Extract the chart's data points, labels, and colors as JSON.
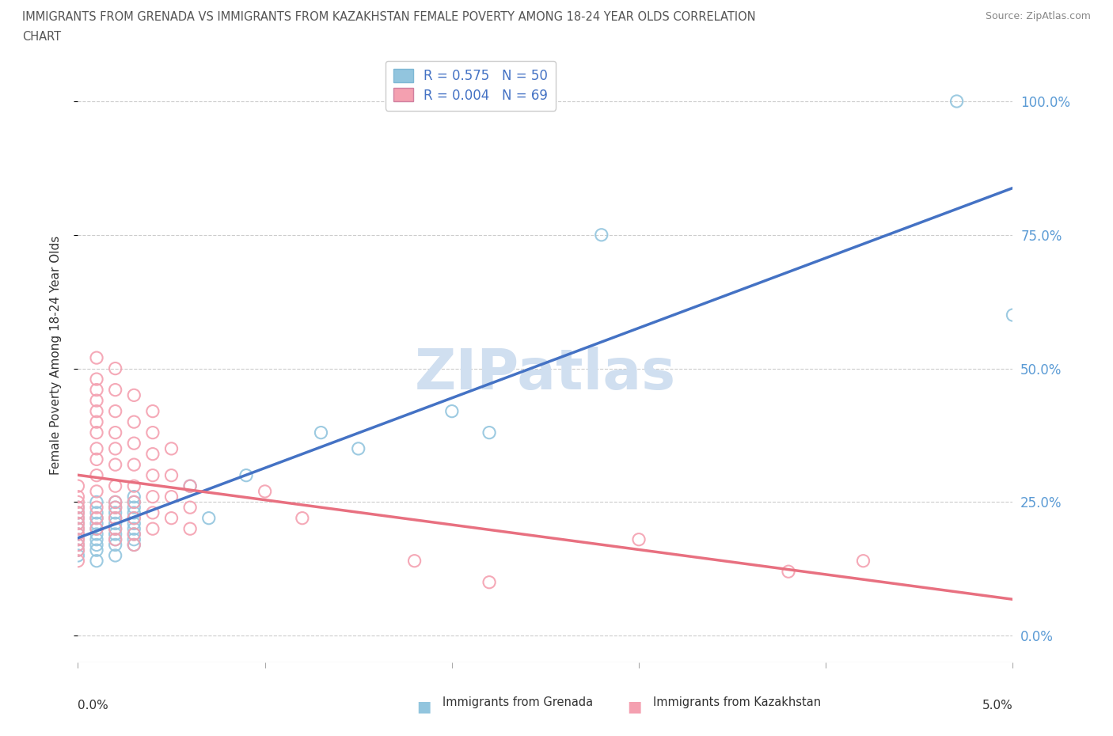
{
  "title_line1": "IMMIGRANTS FROM GRENADA VS IMMIGRANTS FROM KAZAKHSTAN FEMALE POVERTY AMONG 18-24 YEAR OLDS CORRELATION",
  "title_line2": "CHART",
  "source": "Source: ZipAtlas.com",
  "ylabel": "Female Poverty Among 18-24 Year Olds",
  "ytick_labels": [
    "0.0%",
    "25.0%",
    "50.0%",
    "75.0%",
    "100.0%"
  ],
  "ytick_vals": [
    0.0,
    0.25,
    0.5,
    0.75,
    1.0
  ],
  "xlim": [
    0.0,
    0.05
  ],
  "ylim": [
    -0.05,
    1.1
  ],
  "grenada_R": 0.575,
  "grenada_N": 50,
  "kazakhstan_R": 0.004,
  "kazakhstan_N": 69,
  "grenada_color": "#92C5DE",
  "kazakhstan_color": "#F4A0B0",
  "trend_grenada_color": "#4472C4",
  "trend_kazakhstan_color": "#E87080",
  "watermark": "ZIPatlas",
  "grenada_scatter": [
    [
      0.0,
      0.2
    ],
    [
      0.0,
      0.18
    ],
    [
      0.0,
      0.22
    ],
    [
      0.0,
      0.19
    ],
    [
      0.0,
      0.17
    ],
    [
      0.0,
      0.24
    ],
    [
      0.0,
      0.21
    ],
    [
      0.0,
      0.16
    ],
    [
      0.0,
      0.23
    ],
    [
      0.0,
      0.15
    ],
    [
      0.001,
      0.2
    ],
    [
      0.001,
      0.18
    ],
    [
      0.001,
      0.22
    ],
    [
      0.001,
      0.25
    ],
    [
      0.001,
      0.17
    ],
    [
      0.001,
      0.14
    ],
    [
      0.001,
      0.21
    ],
    [
      0.001,
      0.19
    ],
    [
      0.001,
      0.23
    ],
    [
      0.001,
      0.16
    ],
    [
      0.002,
      0.22
    ],
    [
      0.002,
      0.19
    ],
    [
      0.002,
      0.25
    ],
    [
      0.002,
      0.17
    ],
    [
      0.002,
      0.21
    ],
    [
      0.002,
      0.24
    ],
    [
      0.002,
      0.18
    ],
    [
      0.002,
      0.2
    ],
    [
      0.002,
      0.15
    ],
    [
      0.002,
      0.23
    ],
    [
      0.003,
      0.23
    ],
    [
      0.003,
      0.2
    ],
    [
      0.003,
      0.26
    ],
    [
      0.003,
      0.18
    ],
    [
      0.003,
      0.22
    ],
    [
      0.003,
      0.25
    ],
    [
      0.003,
      0.19
    ],
    [
      0.003,
      0.21
    ],
    [
      0.003,
      0.24
    ],
    [
      0.003,
      0.17
    ],
    [
      0.006,
      0.28
    ],
    [
      0.007,
      0.22
    ],
    [
      0.009,
      0.3
    ],
    [
      0.013,
      0.38
    ],
    [
      0.015,
      0.35
    ],
    [
      0.02,
      0.42
    ],
    [
      0.022,
      0.38
    ],
    [
      0.028,
      0.75
    ],
    [
      0.047,
      1.0
    ],
    [
      0.05,
      0.6
    ]
  ],
  "kazakhstan_scatter": [
    [
      0.0,
      0.22
    ],
    [
      0.0,
      0.2
    ],
    [
      0.0,
      0.18
    ],
    [
      0.0,
      0.24
    ],
    [
      0.0,
      0.16
    ],
    [
      0.0,
      0.21
    ],
    [
      0.0,
      0.25
    ],
    [
      0.0,
      0.19
    ],
    [
      0.0,
      0.23
    ],
    [
      0.0,
      0.17
    ],
    [
      0.0,
      0.26
    ],
    [
      0.0,
      0.14
    ],
    [
      0.0,
      0.28
    ],
    [
      0.001,
      0.48
    ],
    [
      0.001,
      0.44
    ],
    [
      0.001,
      0.52
    ],
    [
      0.001,
      0.46
    ],
    [
      0.001,
      0.42
    ],
    [
      0.001,
      0.38
    ],
    [
      0.001,
      0.35
    ],
    [
      0.001,
      0.4
    ],
    [
      0.001,
      0.3
    ],
    [
      0.001,
      0.33
    ],
    [
      0.001,
      0.27
    ],
    [
      0.001,
      0.24
    ],
    [
      0.001,
      0.22
    ],
    [
      0.001,
      0.2
    ],
    [
      0.002,
      0.5
    ],
    [
      0.002,
      0.46
    ],
    [
      0.002,
      0.42
    ],
    [
      0.002,
      0.38
    ],
    [
      0.002,
      0.35
    ],
    [
      0.002,
      0.32
    ],
    [
      0.002,
      0.28
    ],
    [
      0.002,
      0.25
    ],
    [
      0.002,
      0.22
    ],
    [
      0.002,
      0.2
    ],
    [
      0.002,
      0.18
    ],
    [
      0.002,
      0.24
    ],
    [
      0.003,
      0.45
    ],
    [
      0.003,
      0.4
    ],
    [
      0.003,
      0.36
    ],
    [
      0.003,
      0.32
    ],
    [
      0.003,
      0.28
    ],
    [
      0.003,
      0.25
    ],
    [
      0.003,
      0.22
    ],
    [
      0.003,
      0.19
    ],
    [
      0.003,
      0.17
    ],
    [
      0.004,
      0.42
    ],
    [
      0.004,
      0.38
    ],
    [
      0.004,
      0.34
    ],
    [
      0.004,
      0.3
    ],
    [
      0.004,
      0.26
    ],
    [
      0.004,
      0.23
    ],
    [
      0.004,
      0.2
    ],
    [
      0.005,
      0.35
    ],
    [
      0.005,
      0.3
    ],
    [
      0.005,
      0.26
    ],
    [
      0.005,
      0.22
    ],
    [
      0.006,
      0.28
    ],
    [
      0.006,
      0.24
    ],
    [
      0.006,
      0.2
    ],
    [
      0.01,
      0.27
    ],
    [
      0.012,
      0.22
    ],
    [
      0.018,
      0.14
    ],
    [
      0.022,
      0.1
    ],
    [
      0.03,
      0.18
    ],
    [
      0.038,
      0.12
    ],
    [
      0.042,
      0.14
    ]
  ]
}
